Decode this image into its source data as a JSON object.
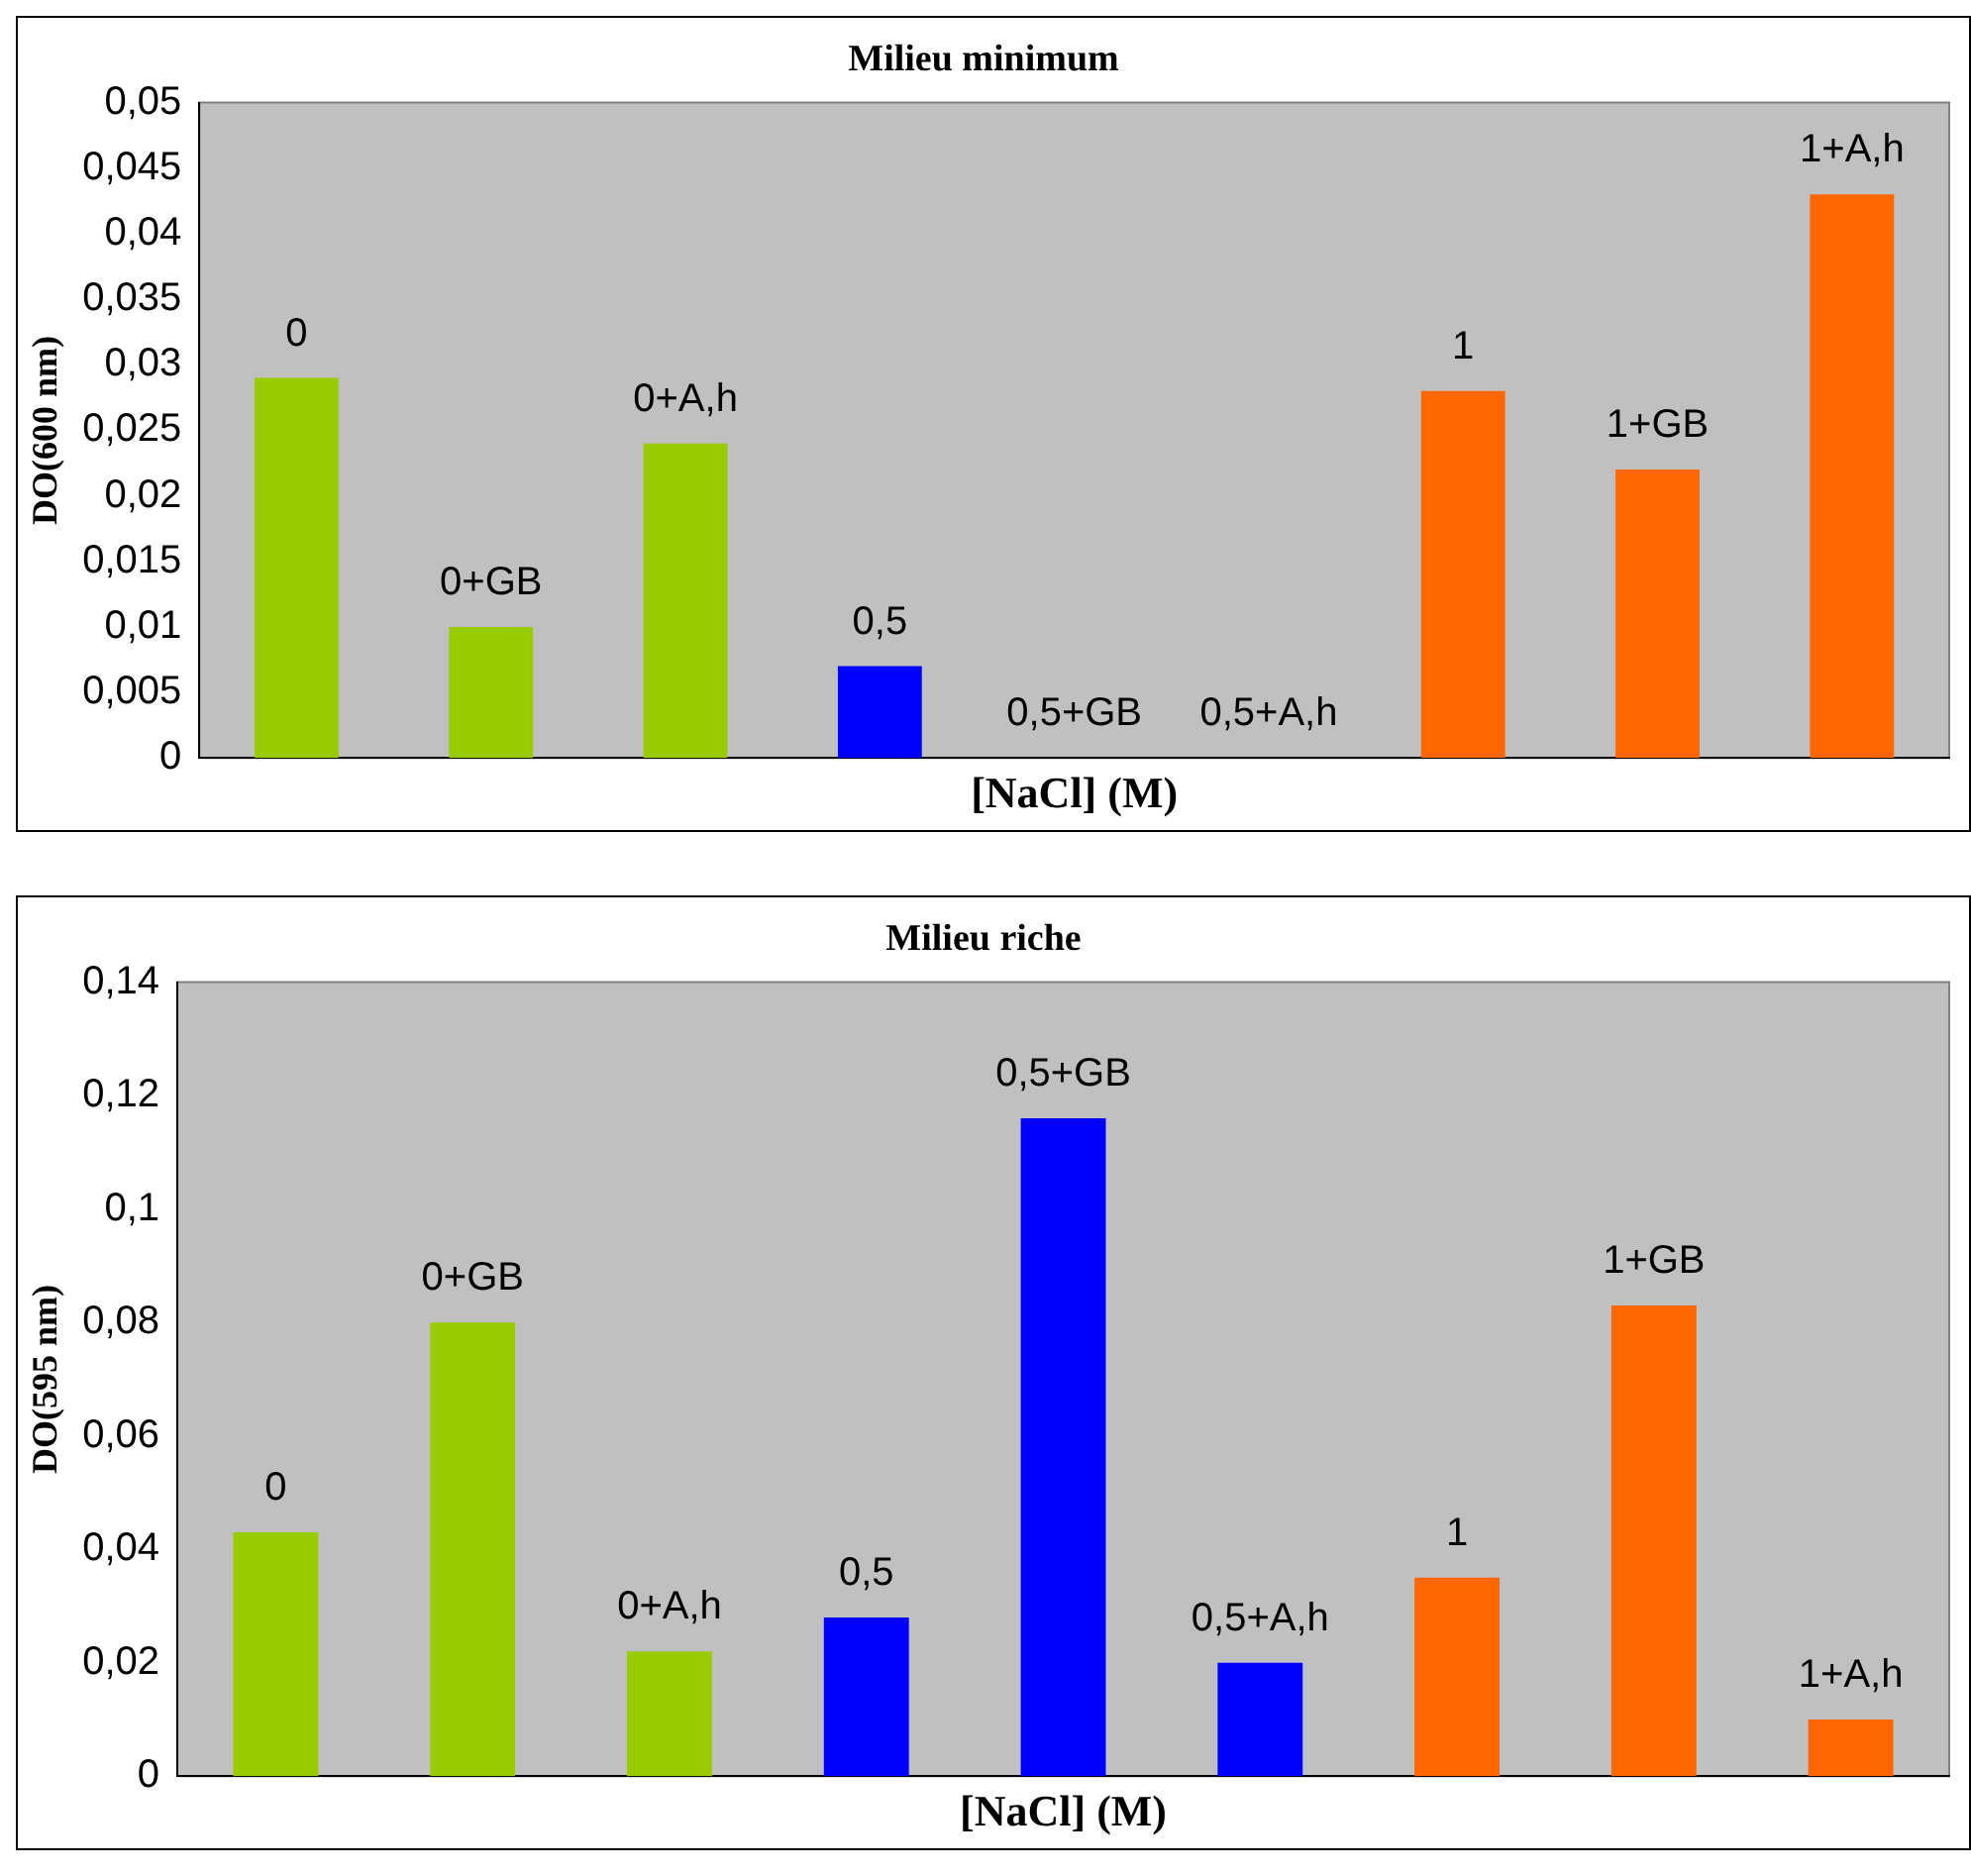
{
  "chart_data": [
    {
      "type": "bar",
      "title": "Milieu minimum",
      "xlabel": "[NaCl] (M)",
      "ylabel": "DO(600 nm)",
      "categories": [
        "0",
        "0+GB",
        "0+A,h",
        "0,5",
        "0,5+GB",
        "0,5+A,h",
        "1",
        "1+GB",
        "1+A,h"
      ],
      "values": [
        0.029,
        0.01,
        0.024,
        0.007,
        0,
        0,
        0.028,
        0.022,
        0.043
      ],
      "colors": [
        "#99cc00",
        "#99cc00",
        "#99cc00",
        "#0000ff",
        "#0000ff",
        "#0000ff",
        "#ff6600",
        "#ff6600",
        "#ff6600"
      ],
      "ylim": [
        0,
        0.05
      ],
      "yticks": [
        0,
        {
          "value": 0.005,
          "label": "0,005"
        },
        {
          "value": 0.01,
          "label": "0,01"
        },
        {
          "value": 0.015,
          "label": "0,015"
        },
        {
          "value": 0.02,
          "label": "0,02"
        },
        {
          "value": 0.025,
          "label": "0,025"
        },
        {
          "value": 0.03,
          "label": "0,03"
        },
        {
          "value": 0.035,
          "label": "0,035"
        },
        {
          "value": 0.04,
          "label": "0,04"
        },
        {
          "value": 0.045,
          "label": "0,045"
        },
        {
          "value": 0.05,
          "label": "0,05"
        }
      ],
      "tick_labels": "y",
      "grid": false,
      "legend": false
    },
    {
      "type": "bar",
      "title": "Milieu riche",
      "xlabel": "[NaCl] (M)",
      "ylabel": "DO(595 nm)",
      "categories": [
        "0",
        "0+GB",
        "0+A,h",
        "0,5",
        "0,5+GB",
        "0,5+A,h",
        "1",
        "1+GB",
        "1+A,h"
      ],
      "values": [
        0.043,
        0.08,
        0.022,
        0.028,
        0.116,
        0.02,
        0.035,
        0.083,
        0.01
      ],
      "colors": [
        "#99cc00",
        "#99cc00",
        "#99cc00",
        "#0000ff",
        "#0000ff",
        "#0000ff",
        "#ff6600",
        "#ff6600",
        "#ff6600"
      ],
      "ylim": [
        0,
        0.14
      ],
      "yticks": [
        0,
        {
          "value": 0.02,
          "label": "0,02"
        },
        {
          "value": 0.04,
          "label": "0,04"
        },
        {
          "value": 0.06,
          "label": "0,06"
        },
        {
          "value": 0.08,
          "label": "0,08"
        },
        {
          "value": 0.1,
          "label": "0,1"
        },
        {
          "value": 0.12,
          "label": "0,12"
        },
        {
          "value": 0.14,
          "label": "0,14"
        }
      ],
      "tick_labels": "y",
      "grid": false,
      "legend": false
    }
  ]
}
